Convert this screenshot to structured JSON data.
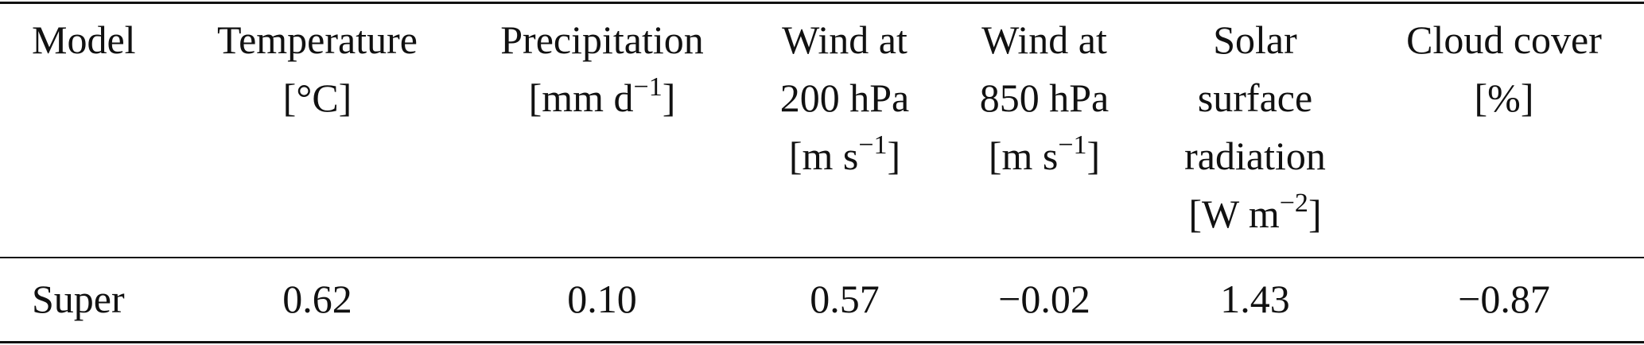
{
  "table": {
    "header": [
      [
        "Model"
      ],
      [
        "Temperature",
        {
          "base": "[°C]"
        }
      ],
      [
        "Precipitation",
        {
          "base": "[mm d",
          "sup": "−1",
          "end": "]"
        }
      ],
      [
        "Wind at",
        "200 hPa",
        {
          "base": "[m s",
          "sup": "−1",
          "end": "]"
        }
      ],
      [
        "Wind at",
        "850 hPa",
        {
          "base": "[m s",
          "sup": "−1",
          "end": "]"
        }
      ],
      [
        "Solar",
        "surface",
        "radiation",
        {
          "base": "[W m",
          "sup": "−2",
          "end": "]"
        }
      ],
      [
        "Cloud cover",
        {
          "base": "[%]"
        }
      ]
    ],
    "rows": [
      [
        "Super",
        "0.62",
        "0.10",
        "0.57",
        "−0.02",
        "1.43",
        "−0.87"
      ]
    ]
  }
}
